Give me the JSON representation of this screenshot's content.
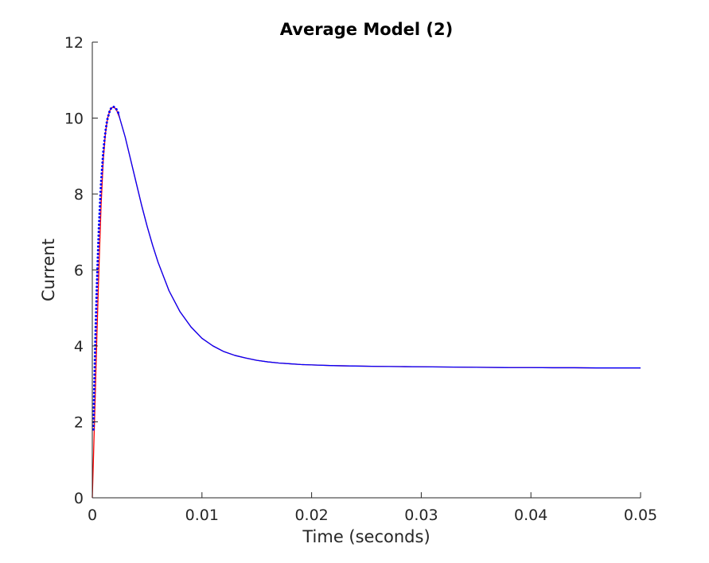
{
  "chart_data": {
    "type": "line",
    "title": "Average Model (2)",
    "xlabel": "Time (seconds)",
    "ylabel": "Current",
    "xlim": [
      0,
      0.05
    ],
    "ylim": [
      0,
      12
    ],
    "x_ticks": [
      "0",
      "0.01",
      "0.02",
      "0.03",
      "0.04",
      "0.05"
    ],
    "y_ticks": [
      "0",
      "2",
      "4",
      "6",
      "8",
      "10",
      "12"
    ],
    "grid": false,
    "legend": "none",
    "series": [
      {
        "color": "#ff0000",
        "style": "solid",
        "x": [
          0,
          0.0002,
          0.0004,
          0.0006,
          0.0008,
          0.001,
          0.0012,
          0.0014,
          0.0016,
          0.0018,
          0.002,
          0.0022,
          0.0025,
          0.003,
          0.0035,
          0.004,
          0.0045,
          0.005,
          0.0055,
          0.006,
          0.007,
          0.008,
          0.009,
          0.01,
          0.011,
          0.012,
          0.013,
          0.014,
          0.015,
          0.016,
          0.017,
          0.018,
          0.019,
          0.02,
          0.022,
          0.024,
          0.026,
          0.028,
          0.03,
          0.032,
          0.034,
          0.036,
          0.038,
          0.04,
          0.042,
          0.044,
          0.046,
          0.048,
          0.05
        ],
        "y": [
          0,
          2.0,
          4.1,
          6.0,
          7.7,
          8.9,
          9.6,
          10.0,
          10.2,
          10.28,
          10.28,
          10.22,
          10.0,
          9.5,
          8.9,
          8.3,
          7.7,
          7.15,
          6.65,
          6.2,
          5.45,
          4.9,
          4.5,
          4.2,
          4.0,
          3.85,
          3.75,
          3.68,
          3.62,
          3.58,
          3.55,
          3.53,
          3.51,
          3.5,
          3.48,
          3.47,
          3.46,
          3.455,
          3.45,
          3.445,
          3.44,
          3.435,
          3.43,
          3.43,
          3.425,
          3.425,
          3.42,
          3.42,
          3.42
        ]
      },
      {
        "color": "#0000ff",
        "style": "dotted",
        "x": [
          0.0001,
          0.0002,
          0.0003,
          0.0004,
          0.0005,
          0.0006,
          0.0007,
          0.0008,
          0.0009,
          0.001,
          0.0011,
          0.0012,
          0.0013,
          0.0014,
          0.0015,
          0.0016,
          0.0017,
          0.0018,
          0.0019,
          0.002,
          0.0021,
          0.0022,
          0.0023,
          0.0024
        ],
        "y": [
          1.8,
          3.2,
          4.4,
          5.4,
          6.3,
          7.1,
          7.7,
          8.3,
          8.7,
          9.1,
          9.4,
          9.65,
          9.85,
          10.0,
          10.1,
          10.2,
          10.25,
          10.28,
          10.3,
          10.29,
          10.27,
          10.23,
          10.18,
          10.12
        ]
      },
      {
        "color": "#0000ff",
        "style": "solid",
        "x": [
          0.0024,
          0.0025,
          0.003,
          0.0035,
          0.004,
          0.0045,
          0.005,
          0.0055,
          0.006,
          0.007,
          0.008,
          0.009,
          0.01,
          0.011,
          0.012,
          0.013,
          0.014,
          0.015,
          0.016,
          0.017,
          0.018,
          0.019,
          0.02,
          0.022,
          0.024,
          0.026,
          0.028,
          0.03,
          0.032,
          0.034,
          0.036,
          0.038,
          0.04,
          0.042,
          0.044,
          0.046,
          0.048,
          0.05
        ],
        "y": [
          10.12,
          10.0,
          9.5,
          8.9,
          8.3,
          7.7,
          7.15,
          6.65,
          6.2,
          5.45,
          4.9,
          4.5,
          4.2,
          4.0,
          3.85,
          3.75,
          3.68,
          3.62,
          3.58,
          3.55,
          3.53,
          3.51,
          3.5,
          3.48,
          3.47,
          3.46,
          3.455,
          3.45,
          3.445,
          3.44,
          3.435,
          3.43,
          3.43,
          3.425,
          3.425,
          3.42,
          3.42,
          3.42
        ]
      }
    ]
  }
}
